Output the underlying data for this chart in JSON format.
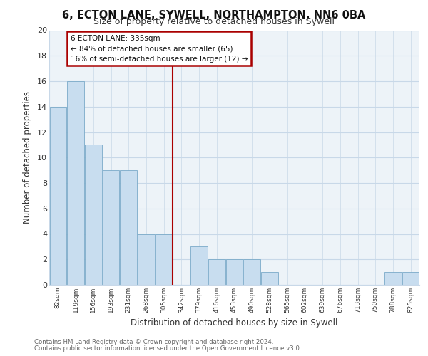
{
  "title": "6, ECTON LANE, SYWELL, NORTHAMPTON, NN6 0BA",
  "subtitle": "Size of property relative to detached houses in Sywell",
  "xlabel": "Distribution of detached houses by size in Sywell",
  "ylabel": "Number of detached properties",
  "bar_color": "#c8ddef",
  "bar_edge_color": "#7aaac8",
  "categories": [
    "82sqm",
    "119sqm",
    "156sqm",
    "193sqm",
    "231sqm",
    "268sqm",
    "305sqm",
    "342sqm",
    "379sqm",
    "416sqm",
    "453sqm",
    "490sqm",
    "528sqm",
    "565sqm",
    "602sqm",
    "639sqm",
    "676sqm",
    "713sqm",
    "750sqm",
    "788sqm",
    "825sqm"
  ],
  "values": [
    14,
    16,
    11,
    9,
    9,
    4,
    4,
    0,
    3,
    2,
    2,
    2,
    1,
    0,
    0,
    0,
    0,
    0,
    0,
    1,
    1
  ],
  "ylim": [
    0,
    20
  ],
  "yticks": [
    0,
    2,
    4,
    6,
    8,
    10,
    12,
    14,
    16,
    18,
    20
  ],
  "annotation_title": "6 ECTON LANE: 335sqm",
  "annotation_line1": "← 84% of detached houses are smaller (65)",
  "annotation_line2": "16% of semi-detached houses are larger (12) →",
  "annotation_box_color": "#ffffff",
  "annotation_box_edge": "#aa0000",
  "property_line_color": "#aa0000",
  "grid_color": "#c8d8e8",
  "background_color": "#ffffff",
  "plot_bg_color": "#edf3f8",
  "footer1": "Contains HM Land Registry data © Crown copyright and database right 2024.",
  "footer2": "Contains public sector information licensed under the Open Government Licence v3.0."
}
